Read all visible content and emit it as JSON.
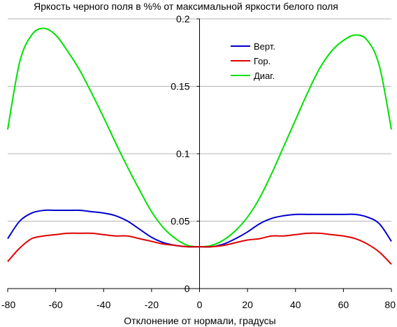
{
  "chart_data": {
    "type": "line",
    "title": "Яркость черного поля в %% от максимальной яркости белого поля",
    "xlabel": "Отклонение от нормали, градусы",
    "ylabel": "",
    "xlim": [
      -80,
      80
    ],
    "ylim": [
      0,
      0.2
    ],
    "x_ticks": [
      "-80",
      "-60",
      "-40",
      "-20",
      "0",
      "20",
      "40",
      "60",
      "80"
    ],
    "y_ticks": [
      "0",
      "0.05",
      "0.1",
      "0.15",
      "0.2"
    ],
    "grid": "horizontal",
    "legend_position": "top-right",
    "x": [
      -80,
      -75,
      -70,
      -65,
      -60,
      -55,
      -50,
      -45,
      -40,
      -35,
      -30,
      -25,
      -20,
      -15,
      -10,
      -5,
      0,
      5,
      10,
      15,
      20,
      25,
      30,
      35,
      40,
      45,
      50,
      55,
      60,
      65,
      70,
      75,
      80
    ],
    "series": [
      {
        "name": "Верт.",
        "color": "#0000cc",
        "values": [
          0.037,
          0.05,
          0.056,
          0.058,
          0.058,
          0.058,
          0.058,
          0.057,
          0.056,
          0.054,
          0.05,
          0.044,
          0.038,
          0.034,
          0.032,
          0.031,
          0.031,
          0.031,
          0.033,
          0.037,
          0.042,
          0.048,
          0.052,
          0.054,
          0.055,
          0.055,
          0.055,
          0.055,
          0.055,
          0.055,
          0.053,
          0.048,
          0.035
        ]
      },
      {
        "name": "Гор.",
        "color": "#e00000",
        "values": [
          0.02,
          0.03,
          0.037,
          0.039,
          0.04,
          0.041,
          0.041,
          0.041,
          0.04,
          0.039,
          0.039,
          0.037,
          0.035,
          0.033,
          0.032,
          0.031,
          0.031,
          0.031,
          0.032,
          0.034,
          0.036,
          0.037,
          0.039,
          0.039,
          0.04,
          0.041,
          0.041,
          0.04,
          0.039,
          0.037,
          0.033,
          0.027,
          0.018
        ]
      },
      {
        "name": "Диаг.",
        "color": "#00e000",
        "values": [
          0.118,
          0.168,
          0.188,
          0.193,
          0.188,
          0.176,
          0.162,
          0.145,
          0.127,
          0.108,
          0.09,
          0.073,
          0.057,
          0.045,
          0.037,
          0.032,
          0.031,
          0.032,
          0.036,
          0.043,
          0.053,
          0.067,
          0.085,
          0.105,
          0.125,
          0.145,
          0.163,
          0.176,
          0.184,
          0.188,
          0.184,
          0.165,
          0.118
        ]
      }
    ]
  }
}
